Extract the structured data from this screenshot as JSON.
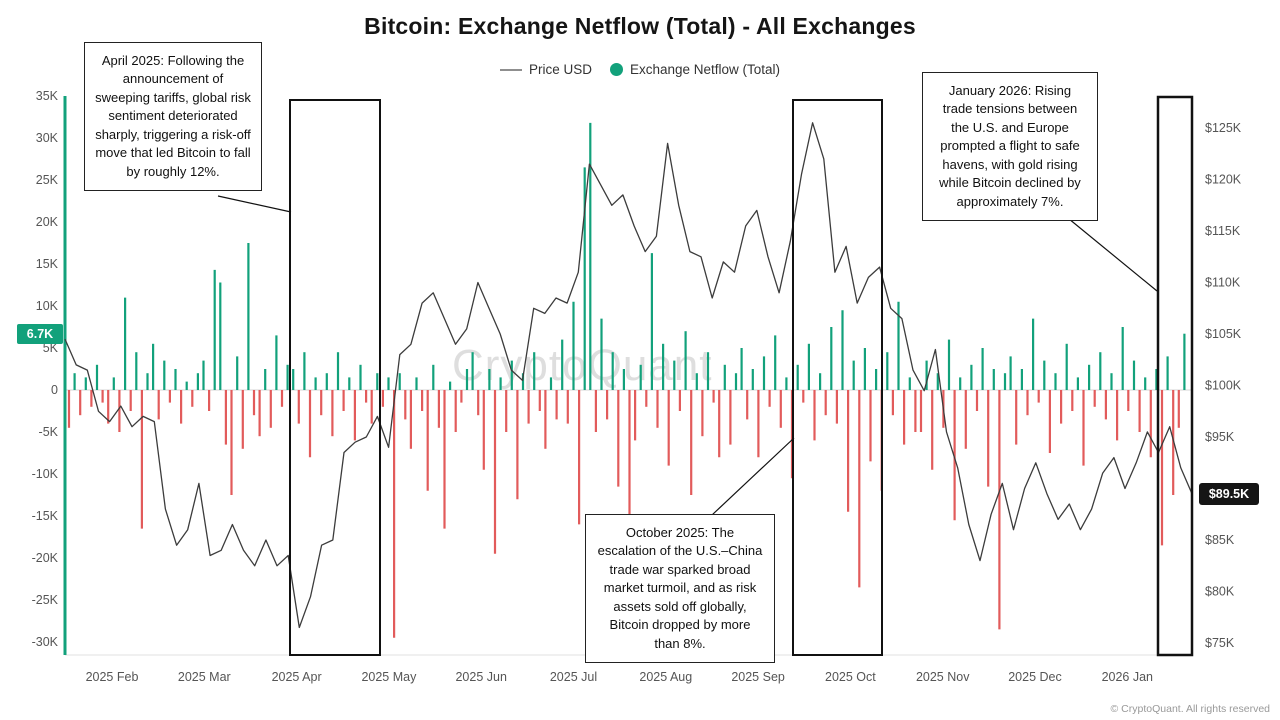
{
  "title": "Bitcoin: Exchange Netflow (Total) - All Exchanges",
  "legend": {
    "price_label": "Price USD",
    "netflow_label": "Exchange Netflow (Total)"
  },
  "watermark": "CryptoQuant",
  "footer": "© CryptoQuant. All rights reserved",
  "chart_data": {
    "type": "bar",
    "subtype": "dual-axis bar + line combo",
    "title": "Bitcoin: Exchange Netflow (Total) - All Exchanges",
    "legend_entries": [
      "Price USD",
      "Exchange Netflow (Total)"
    ],
    "legend_position": "top-center",
    "grid": false,
    "x": {
      "unit": "month",
      "tick_labels": [
        "2025 Feb",
        "2025 Mar",
        "2025 Apr",
        "2025 May",
        "2025 Jun",
        "2025 Jul",
        "2025 Aug",
        "2025 Sep",
        "2025 Oct",
        "2025 Nov",
        "2025 Dec",
        "2026 Jan"
      ]
    },
    "left_axis": {
      "title": "Exchange Netflow (Total)",
      "unit": "K BTC",
      "range": [
        -31.5,
        35.5
      ],
      "tick_values": [
        35,
        30,
        25,
        20,
        15,
        10,
        5,
        0,
        -5,
        -10,
        -15,
        -20,
        -25,
        -30
      ],
      "tick_labels": [
        "35K",
        "30K",
        "25K",
        "20K",
        "15K",
        "10K",
        "5K",
        "0",
        "-5K",
        "-10K",
        "-15K",
        "-20K",
        "-25K",
        "-30K"
      ],
      "current_badge": "6.7K"
    },
    "right_axis": {
      "title": "Price USD",
      "unit": "K USD",
      "range": [
        75,
        126
      ],
      "tick_values": [
        125,
        120,
        115,
        110,
        105,
        100,
        95,
        85,
        80,
        75
      ],
      "tick_labels": [
        "$125K",
        "$120K",
        "$115K",
        "$110K",
        "$105K",
        "$100K",
        "$95K",
        "$85K",
        "$80K",
        "$75K"
      ],
      "current_badge": "$89.5K"
    },
    "series": [
      {
        "name": "Exchange Netflow (Total)",
        "type": "bar",
        "axis": "left",
        "unit": "K BTC",
        "color_positive": "#12a17b",
        "color_negative": "#e25b5b",
        "values": [
          -4.5,
          2,
          -3,
          1.5,
          -2,
          3,
          -1.5,
          -4,
          1.5,
          -5,
          11,
          -2.5,
          4.5,
          -16.5,
          2,
          5.5,
          -3.5,
          3.5,
          -1.5,
          2.5,
          -4,
          1,
          -2,
          2,
          3.5,
          -2.5,
          14.3,
          12.8,
          -6.5,
          -12.5,
          4,
          -7,
          17.5,
          -3,
          -5.5,
          2.5,
          -4.5,
          6.5,
          -2,
          3,
          2.5,
          -4,
          4.5,
          -8,
          1.5,
          -3,
          2,
          -5.5,
          4.5,
          -2.5,
          1.5,
          -6,
          3,
          -1.5,
          -4,
          2,
          -2,
          1.5,
          -29.5,
          2,
          -3.5,
          -7,
          1.5,
          -2.5,
          -12,
          3,
          -4.5,
          -16.5,
          1,
          -5,
          -1.5,
          2.5,
          4.5,
          -3,
          -9.5,
          2.5,
          -19.5,
          1.5,
          -5,
          3.5,
          -13,
          2,
          -4,
          4.5,
          -2.5,
          -7,
          1.5,
          -3.5,
          6,
          -4,
          10.5,
          -16,
          26.5,
          31.8,
          -5,
          8.5,
          -3.5,
          4.5,
          -11.5,
          2.5,
          -19,
          -6,
          3,
          -2,
          16.3,
          -4.5,
          5.5,
          -9,
          3.5,
          -2.5,
          7,
          -12.5,
          2,
          -5.5,
          4.5,
          -1.5,
          -8,
          3,
          -6.5,
          2,
          5,
          -3.5,
          2.5,
          -8,
          4,
          -2,
          6.5,
          -4.5,
          1.5,
          -10.5,
          3,
          -1.5,
          5.5,
          -6,
          2,
          -3,
          7.5,
          -4,
          9.5,
          -14.5,
          3.5,
          -23.5,
          5,
          -8.5,
          2.5,
          -12,
          4.5,
          -3,
          10.5,
          -6.5,
          1.5,
          -5,
          -5,
          3.5,
          -9.5,
          2,
          -4.5,
          6,
          -15.5,
          1.5,
          -7,
          3,
          -2.5,
          5,
          -11.5,
          2.5,
          -28.5,
          2,
          4,
          -6.5,
          2.5,
          -3,
          8.5,
          -1.5,
          3.5,
          -7.5,
          2,
          -4,
          5.5,
          -2.5,
          1.5,
          -9,
          3,
          -2,
          4.5,
          -3.5,
          2,
          -6,
          7.5,
          -2.5,
          3.5,
          -5,
          1.5,
          -8,
          2.5,
          -18.5,
          4,
          -12.5,
          -4.5,
          6.7
        ]
      },
      {
        "name": "Price USD",
        "type": "line",
        "axis": "right",
        "unit": "K USD",
        "color": "#3c3c3c",
        "values": [
          104.5,
          102,
          101.5,
          97.5,
          96.5,
          98,
          96,
          97,
          96.5,
          88,
          84.5,
          86,
          90.5,
          83.5,
          84,
          86.5,
          84,
          82.5,
          85,
          82.5,
          83.5,
          76.5,
          79.5,
          84.5,
          85,
          93.5,
          94.5,
          95,
          97,
          94,
          103,
          104,
          108,
          109,
          106.5,
          104,
          105.5,
          110,
          107.5,
          105,
          101.5,
          100.5,
          107.5,
          107,
          108.5,
          108,
          111,
          121.5,
          119.5,
          117.5,
          118.5,
          115.5,
          113,
          114.5,
          123.5,
          117.5,
          113,
          112.5,
          108.5,
          112,
          111,
          115.5,
          117,
          112.5,
          109,
          114,
          120.5,
          125.5,
          122,
          111,
          113.5,
          108,
          110.5,
          111.5,
          107.5,
          106.5,
          101.5,
          99.5,
          103.5,
          95.5,
          92,
          86.5,
          83,
          87.5,
          90.5,
          86,
          90,
          92.5,
          89.5,
          87,
          88.5,
          86,
          88,
          91.5,
          93,
          90,
          92.5,
          95.5,
          93.5,
          96,
          92,
          89.5
        ]
      }
    ],
    "annotations": [
      {
        "label": "April 2025",
        "text": "April 2025: Following the announcement of sweeping tariffs, global risk sentiment deteriorated sharply, triggering a risk-off move that led Bitcoin to fall by roughly 12%."
      },
      {
        "label": "October 2025",
        "text": "October 2025: The escalation of the U.S.–China trade war sparked broad market turmoil, and as risk assets sold off globally, Bitcoin dropped by more than 8%."
      },
      {
        "label": "January 2026",
        "text": "January 2026: Rising trade tensions between the U.S. and Europe prompted a flight to safe havens, with gold rising while Bitcoin declined by approximately 7%."
      }
    ],
    "highlighted_periods": [
      "2025 Apr",
      "2025 Oct",
      "2026 Jan"
    ],
    "watermark": "CryptoQuant"
  }
}
